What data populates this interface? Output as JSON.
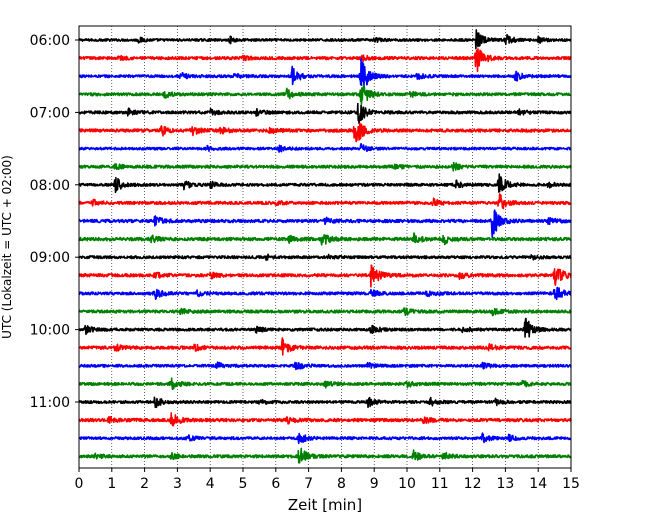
{
  "chart_data": {
    "type": "line",
    "subtype": "helicorder",
    "title": "",
    "xlabel": "Zeit  [min]",
    "ylabel": "UTC (Lokalzeit = UTC + 02:00)",
    "xlim": [
      0,
      15
    ],
    "x_ticks": [
      0,
      1,
      2,
      3,
      4,
      5,
      6,
      7,
      8,
      9,
      10,
      11,
      12,
      13,
      14,
      15
    ],
    "x_tick_labels": [
      "0",
      "1",
      "2",
      "3",
      "4",
      "5",
      "6",
      "7",
      "8",
      "9",
      "10",
      "11",
      "12",
      "13",
      "14",
      "15"
    ],
    "y_tick_labels": [
      "06:00",
      "07:00",
      "08:00",
      "09:00",
      "10:00",
      "11:00"
    ],
    "grid": "vertical dotted at each minute",
    "trace_interval_min": 15,
    "trace_color_cycle": [
      "#000000",
      "#ff0000",
      "#0000ff",
      "#008000"
    ],
    "traces": [
      {
        "start": "06:00",
        "base_amp": 0.12,
        "events": [
          [
            12.1,
            1.0
          ],
          [
            13.0,
            0.6
          ],
          [
            14.0,
            0.3
          ],
          [
            4.6,
            0.3
          ],
          [
            1.8,
            0.25
          ],
          [
            9.0,
            0.2
          ]
        ]
      },
      {
        "start": "06:15",
        "base_amp": 0.14,
        "events": [
          [
            12.1,
            1.6
          ],
          [
            8.6,
            0.3
          ],
          [
            1.2,
            0.2
          ],
          [
            5.0,
            0.2
          ]
        ]
      },
      {
        "start": "06:30",
        "base_amp": 0.13,
        "events": [
          [
            6.5,
            0.9
          ],
          [
            8.6,
            2.0
          ],
          [
            13.3,
            0.5
          ],
          [
            3.1,
            0.3
          ],
          [
            4.7,
            0.25
          ],
          [
            10.3,
            0.3
          ]
        ]
      },
      {
        "start": "06:45",
        "base_amp": 0.14,
        "events": [
          [
            6.3,
            0.6
          ],
          [
            8.6,
            1.4
          ],
          [
            2.6,
            0.3
          ],
          [
            10.1,
            0.3
          ]
        ]
      },
      {
        "start": "07:00",
        "base_amp": 0.14,
        "events": [
          [
            8.5,
            1.3
          ],
          [
            1.5,
            0.4
          ],
          [
            4.0,
            0.3
          ],
          [
            5.4,
            0.3
          ],
          [
            13.4,
            0.3
          ]
        ]
      },
      {
        "start": "07:15",
        "base_amp": 0.15,
        "events": [
          [
            8.4,
            1.8
          ],
          [
            2.5,
            0.6
          ],
          [
            3.4,
            0.6
          ],
          [
            4.3,
            0.3
          ],
          [
            5.8,
            0.3
          ]
        ]
      },
      {
        "start": "07:30",
        "base_amp": 0.12,
        "events": [
          [
            8.6,
            0.5
          ],
          [
            6.1,
            0.3
          ],
          [
            3.9,
            0.2
          ]
        ]
      },
      {
        "start": "07:45",
        "base_amp": 0.14,
        "events": [
          [
            1.1,
            0.3
          ],
          [
            11.4,
            0.4
          ],
          [
            9.6,
            0.3
          ]
        ]
      },
      {
        "start": "08:00",
        "base_amp": 0.13,
        "events": [
          [
            1.1,
            0.8
          ],
          [
            12.8,
            1.3
          ],
          [
            3.2,
            0.4
          ],
          [
            4.0,
            0.3
          ],
          [
            11.5,
            0.4
          ],
          [
            14.3,
            0.3
          ]
        ]
      },
      {
        "start": "08:15",
        "base_amp": 0.14,
        "events": [
          [
            12.8,
            0.9
          ],
          [
            0.4,
            0.3
          ],
          [
            10.8,
            0.4
          ],
          [
            6.0,
            0.2
          ]
        ]
      },
      {
        "start": "08:30",
        "base_amp": 0.15,
        "events": [
          [
            12.6,
            1.7
          ],
          [
            2.3,
            0.5
          ],
          [
            7.5,
            0.3
          ],
          [
            14.3,
            0.3
          ]
        ]
      },
      {
        "start": "08:45",
        "base_amp": 0.16,
        "events": [
          [
            7.4,
            0.7
          ],
          [
            10.2,
            0.6
          ],
          [
            11.1,
            0.5
          ],
          [
            2.2,
            0.3
          ],
          [
            6.4,
            0.3
          ]
        ]
      },
      {
        "start": "09:00",
        "base_amp": 0.13,
        "events": [
          [
            5.7,
            0.3
          ],
          [
            7.6,
            0.2
          ],
          [
            13.8,
            0.2
          ]
        ]
      },
      {
        "start": "09:15",
        "base_amp": 0.15,
        "events": [
          [
            8.9,
            1.4
          ],
          [
            14.5,
            1.3
          ],
          [
            2.3,
            0.3
          ],
          [
            4.0,
            0.3
          ],
          [
            11.6,
            0.3
          ]
        ]
      },
      {
        "start": "09:30",
        "base_amp": 0.14,
        "events": [
          [
            2.3,
            0.6
          ],
          [
            8.9,
            0.4
          ],
          [
            10.6,
            0.3
          ],
          [
            14.5,
            0.9
          ],
          [
            3.6,
            0.3
          ]
        ]
      },
      {
        "start": "09:45",
        "base_amp": 0.14,
        "events": [
          [
            3.1,
            0.3
          ],
          [
            9.9,
            0.4
          ],
          [
            12.6,
            0.3
          ]
        ]
      },
      {
        "start": "10:00",
        "base_amp": 0.13,
        "events": [
          [
            0.2,
            0.5
          ],
          [
            13.6,
            1.3
          ],
          [
            8.9,
            0.5
          ],
          [
            5.4,
            0.3
          ],
          [
            11.7,
            0.3
          ]
        ]
      },
      {
        "start": "10:15",
        "base_amp": 0.15,
        "events": [
          [
            6.2,
            0.9
          ],
          [
            1.1,
            0.3
          ],
          [
            3.5,
            0.3
          ],
          [
            12.5,
            0.3
          ]
        ]
      },
      {
        "start": "10:30",
        "base_amp": 0.13,
        "events": [
          [
            6.6,
            0.5
          ],
          [
            4.2,
            0.3
          ],
          [
            8.8,
            0.3
          ],
          [
            12.3,
            0.3
          ]
        ]
      },
      {
        "start": "10:45",
        "base_amp": 0.14,
        "events": [
          [
            2.8,
            0.6
          ],
          [
            7.5,
            0.3
          ],
          [
            10.0,
            0.3
          ],
          [
            13.5,
            0.3
          ]
        ]
      },
      {
        "start": "11:00",
        "base_amp": 0.13,
        "events": [
          [
            2.3,
            0.6
          ],
          [
            8.8,
            0.5
          ],
          [
            10.7,
            0.4
          ],
          [
            5.5,
            0.3
          ],
          [
            12.7,
            0.3
          ]
        ]
      },
      {
        "start": "11:15",
        "base_amp": 0.15,
        "events": [
          [
            2.8,
            0.8
          ],
          [
            6.3,
            0.4
          ],
          [
            0.9,
            0.3
          ],
          [
            10.5,
            0.3
          ]
        ]
      },
      {
        "start": "11:30",
        "base_amp": 0.13,
        "events": [
          [
            6.7,
            0.6
          ],
          [
            3.3,
            0.3
          ],
          [
            12.3,
            0.4
          ],
          [
            13.1,
            0.3
          ]
        ]
      },
      {
        "start": "11:45",
        "base_amp": 0.14,
        "events": [
          [
            6.7,
            1.0
          ],
          [
            10.2,
            0.5
          ],
          [
            11.1,
            0.4
          ],
          [
            2.8,
            0.3
          ],
          [
            0.5,
            0.2
          ]
        ]
      }
    ]
  }
}
